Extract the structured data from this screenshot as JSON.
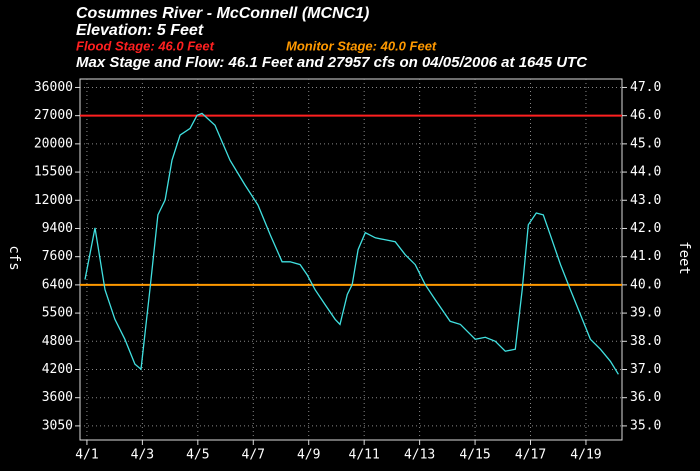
{
  "chart_data": {
    "type": "line",
    "title": "Cosumnes River - McConnell (MCNC1)",
    "subtitle": "Elevation: 5 Feet",
    "annotation": "Max Stage and Flow: 46.1 Feet and 27957 cfs on 04/05/2006 at 1645 UTC",
    "thresholds": [
      {
        "name": "Flood Stage: 46.0 Feet",
        "value": 46.0,
        "color": "#ff2020"
      },
      {
        "name": "Monitor Stage: 40.0 Feet",
        "value": 40.0,
        "color": "#ff9900"
      }
    ],
    "y_label": "feet",
    "flow_label": "cfs",
    "xlim": [
      0.75,
      20.3
    ],
    "ylim": [
      34.5,
      47.3
    ],
    "xticks": [
      {
        "value": 1,
        "label": "4/1"
      },
      {
        "value": 3,
        "label": "4/3"
      },
      {
        "value": 5,
        "label": "4/5"
      },
      {
        "value": 7,
        "label": "4/7"
      },
      {
        "value": 9,
        "label": "4/9"
      },
      {
        "value": 11,
        "label": "4/11"
      },
      {
        "value": 13,
        "label": "4/13"
      },
      {
        "value": 15,
        "label": "4/15"
      },
      {
        "value": 17,
        "label": "4/17"
      },
      {
        "value": 19,
        "label": "4/19"
      }
    ],
    "yticks": [
      {
        "value": 35,
        "label": "35.0"
      },
      {
        "value": 36,
        "label": "36.0"
      },
      {
        "value": 37,
        "label": "37.0"
      },
      {
        "value": 38,
        "label": "38.0"
      },
      {
        "value": 39,
        "label": "39.0"
      },
      {
        "value": 40,
        "label": "40.0"
      },
      {
        "value": 41,
        "label": "41.0"
      },
      {
        "value": 42,
        "label": "42.0"
      },
      {
        "value": 43,
        "label": "43.0"
      },
      {
        "value": 44,
        "label": "44.0"
      },
      {
        "value": 45,
        "label": "45.0"
      },
      {
        "value": 46,
        "label": "46.0"
      },
      {
        "value": 47,
        "label": "47.0"
      }
    ],
    "flow_ticks": [
      {
        "value": 35,
        "label": "3050"
      },
      {
        "value": 36,
        "label": "3600"
      },
      {
        "value": 37,
        "label": "4200"
      },
      {
        "value": 38,
        "label": "4800"
      },
      {
        "value": 39,
        "label": "5500"
      },
      {
        "value": 40,
        "label": "6400"
      },
      {
        "value": 41,
        "label": "7600"
      },
      {
        "value": 42,
        "label": "9400"
      },
      {
        "value": 43,
        "label": "12000"
      },
      {
        "value": 44,
        "label": "15500"
      },
      {
        "value": 45,
        "label": "20000"
      },
      {
        "value": 46,
        "label": "27000"
      },
      {
        "value": 47,
        "label": "36000"
      }
    ],
    "grid": true,
    "series": [
      {
        "color": "#40e0e0",
        "x": [
          0.93,
          1.29,
          1.65,
          2.01,
          2.37,
          2.73,
          2.95,
          3.27,
          3.56,
          3.82,
          4.07,
          4.36,
          4.72,
          4.97,
          5.15,
          5.62,
          6.16,
          6.7,
          7.17,
          7.61,
          8.04,
          8.33,
          8.69,
          8.94,
          9.23,
          9.59,
          9.95,
          10.13,
          10.39,
          10.57,
          10.78,
          11.04,
          11.4,
          11.76,
          12.12,
          12.48,
          12.84,
          13.2,
          13.56,
          14.1,
          14.47,
          15.01,
          15.37,
          15.73,
          16.09,
          16.45,
          16.7,
          16.92,
          17.21,
          17.46,
          17.71,
          18.08,
          18.44,
          18.8,
          19.16,
          19.52,
          19.88,
          20.17
        ],
        "values": [
          40.19,
          42.02,
          39.83,
          38.78,
          38.07,
          37.19,
          37.01,
          39.83,
          42.48,
          43.01,
          44.42,
          45.31,
          45.55,
          46.01,
          46.08,
          45.66,
          44.42,
          43.54,
          42.83,
          41.78,
          40.82,
          40.82,
          40.72,
          40.36,
          39.83,
          39.3,
          38.78,
          38.6,
          39.66,
          40.01,
          41.25,
          41.85,
          41.67,
          41.6,
          41.53,
          41.07,
          40.72,
          40.01,
          39.48,
          38.71,
          38.6,
          38.07,
          38.14,
          38.0,
          37.65,
          37.72,
          39.83,
          42.13,
          42.55,
          42.48,
          41.78,
          40.72,
          39.83,
          38.95,
          38.07,
          37.72,
          37.29,
          36.83
        ]
      }
    ]
  }
}
